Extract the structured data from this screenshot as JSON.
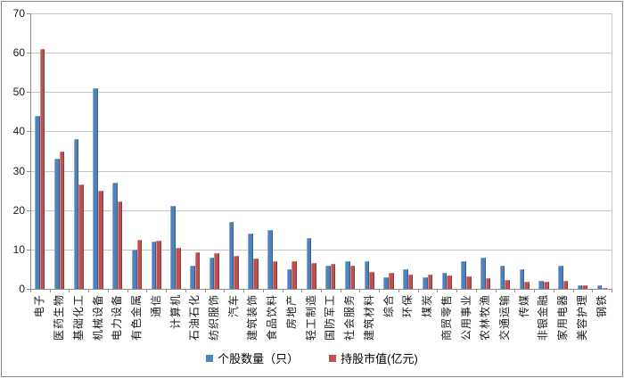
{
  "chart_data": {
    "type": "bar",
    "title": "",
    "xlabel": "",
    "ylabel": "",
    "ylim": [
      0,
      70
    ],
    "yticks": [
      0,
      10,
      20,
      30,
      40,
      50,
      60,
      70
    ],
    "grid": true,
    "legend_position": "bottom",
    "categories": [
      "电子",
      "医药生物",
      "基础化工",
      "机械设备",
      "电力设备",
      "有色金属",
      "通信",
      "计算机",
      "石油石化",
      "纺织服饰",
      "汽车",
      "建筑装饰",
      "食品饮料",
      "房地产",
      "轻工制造",
      "国防军工",
      "社会服务",
      "建筑材料",
      "综合",
      "环保",
      "煤炭",
      "商贸零售",
      "公用事业",
      "农林牧渔",
      "交通运输",
      "传媒",
      "非银金融",
      "家用电器",
      "美容护理",
      "钢铁"
    ],
    "series": [
      {
        "name": "个股数量（只）",
        "color": "#4F81BD",
        "values": [
          44,
          33,
          38,
          51,
          27,
          10,
          12,
          21,
          6,
          8,
          17,
          14,
          15,
          5,
          13,
          6,
          7,
          7,
          3,
          5,
          3,
          4,
          7,
          8,
          6,
          5,
          2,
          6,
          1,
          1
        ]
      },
      {
        "name": "持股市值(亿元)",
        "color": "#C0504D",
        "values": [
          61,
          35,
          26.5,
          25,
          22.3,
          12.5,
          12.3,
          10.4,
          9.3,
          9,
          8.3,
          7.7,
          7.1,
          7,
          6.6,
          6.4,
          5.9,
          4.3,
          4,
          3.6,
          3.6,
          3.3,
          3.1,
          2.8,
          2.3,
          1.9,
          1.8,
          2,
          0.9,
          0.3
        ]
      }
    ]
  },
  "colors": {
    "series1": "#4F81BD",
    "series2": "#C0504D",
    "gridline": "#C6C6C6",
    "axis": "#8E8E8E",
    "chart_border": "#848484",
    "text": "#1A1A1A",
    "background": "#FFFFFF"
  }
}
